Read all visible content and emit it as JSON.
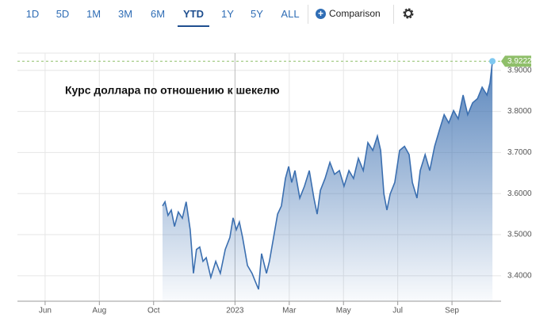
{
  "toolbar": {
    "ranges": [
      "1D",
      "5D",
      "1M",
      "3M",
      "6M",
      "YTD",
      "1Y",
      "5Y",
      "ALL"
    ],
    "active_index": 5,
    "comparison": "Comparison"
  },
  "chart_data": {
    "type": "area",
    "annotation": "Курс доллара по отношению к шекелю",
    "x": [
      10.33,
      10.42,
      10.53,
      10.65,
      10.77,
      10.91,
      11.06,
      11.2,
      11.35,
      11.47,
      11.58,
      11.7,
      11.82,
      11.94,
      12.11,
      12.29,
      12.46,
      12.64,
      12.81,
      12.93,
      13.05,
      13.16,
      13.28,
      13.46,
      13.63,
      13.75,
      13.87,
      13.98,
      14.16,
      14.27,
      14.42,
      14.57,
      14.71,
      14.86,
      14.98,
      15.09,
      15.21,
      15.39,
      15.56,
      15.74,
      15.91,
      16.03,
      16.15,
      16.32,
      16.5,
      16.67,
      16.85,
      17.02,
      17.2,
      17.37,
      17.55,
      17.73,
      17.9,
      18.08,
      18.25,
      18.37,
      18.49,
      18.6,
      18.72,
      18.89,
      19.07,
      19.25,
      19.42,
      19.54,
      19.71,
      19.83,
      20.01,
      20.18,
      20.36,
      20.53,
      20.71,
      20.88,
      21.06,
      21.23,
      21.41,
      21.58,
      21.76,
      21.94,
      22.11,
      22.29,
      22.4,
      22.49
    ],
    "values": [
      3.57,
      3.58,
      3.547,
      3.56,
      3.52,
      3.555,
      3.54,
      3.58,
      3.512,
      3.406,
      3.464,
      3.47,
      3.435,
      3.444,
      3.396,
      3.435,
      3.406,
      3.464,
      3.493,
      3.541,
      3.512,
      3.531,
      3.493,
      3.425,
      3.406,
      3.386,
      3.367,
      3.454,
      3.406,
      3.435,
      3.493,
      3.55,
      3.57,
      3.637,
      3.666,
      3.627,
      3.656,
      3.589,
      3.618,
      3.656,
      3.589,
      3.55,
      3.608,
      3.637,
      3.676,
      3.647,
      3.656,
      3.618,
      3.656,
      3.637,
      3.686,
      3.656,
      3.724,
      3.705,
      3.74,
      3.705,
      3.599,
      3.56,
      3.599,
      3.627,
      3.705,
      3.715,
      3.695,
      3.627,
      3.589,
      3.656,
      3.695,
      3.656,
      3.715,
      3.753,
      3.792,
      3.772,
      3.802,
      3.782,
      3.84,
      3.792,
      3.821,
      3.831,
      3.859,
      3.84,
      3.869,
      3.9222
    ],
    "color": "#3b6fb0",
    "xlim": [
      4.98,
      22.81
    ],
    "xticks": [
      {
        "value": 6,
        "label": "Jun"
      },
      {
        "value": 8,
        "label": "Aug"
      },
      {
        "value": 10,
        "label": "Oct"
      },
      {
        "value": 13,
        "label": "2023"
      },
      {
        "value": 15,
        "label": "Mar"
      },
      {
        "value": 17,
        "label": "May"
      },
      {
        "value": 19,
        "label": "Jul"
      },
      {
        "value": 21,
        "label": "Sep"
      }
    ],
    "ylim": [
      3.338,
      3.942
    ],
    "yticks": [
      {
        "value": 3.4,
        "label": "3.4000"
      },
      {
        "value": 3.5,
        "label": "3.5000"
      },
      {
        "value": 3.6,
        "label": "3.6000"
      },
      {
        "value": 3.7,
        "label": "3.7000"
      },
      {
        "value": 3.8,
        "label": "3.8000"
      },
      {
        "value": 3.9,
        "label": "3.9000"
      }
    ],
    "grid": true
  }
}
